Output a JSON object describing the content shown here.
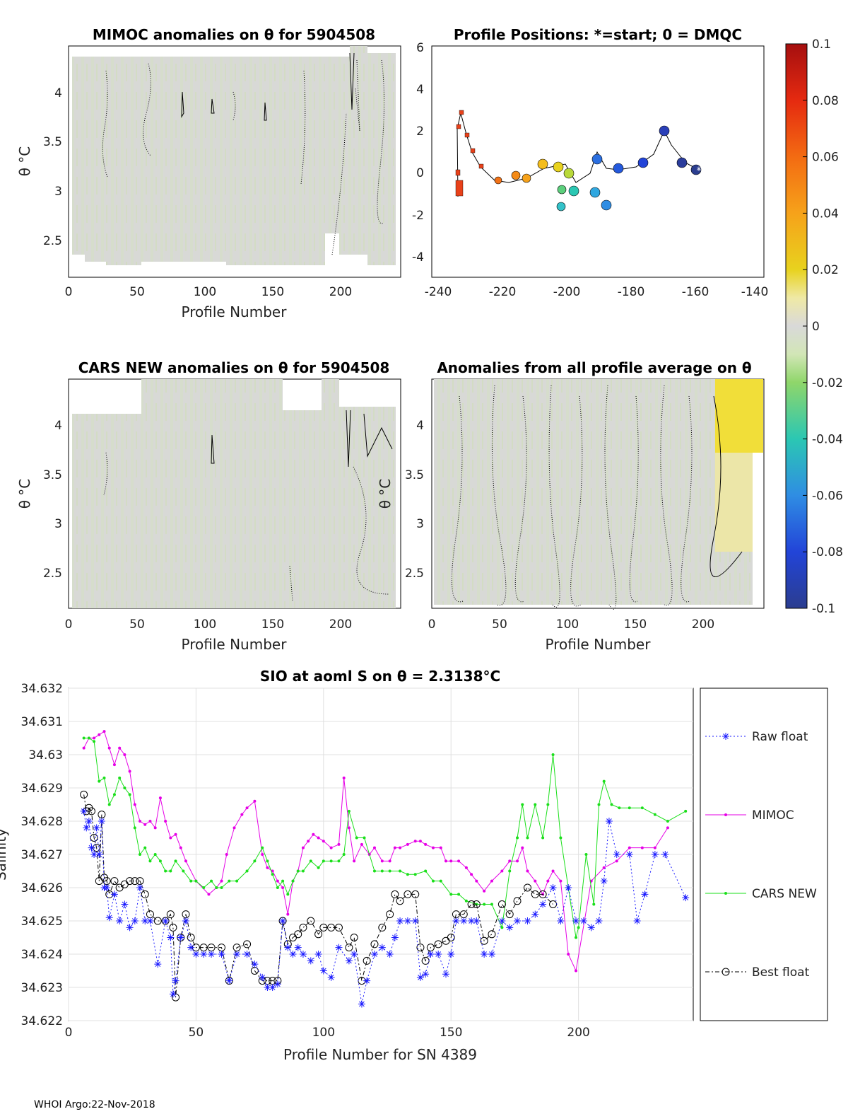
{
  "footer": "WHOI Argo:22-Nov-2018",
  "panels": {
    "mimoc": {
      "title": "MIMOC anomalies on θ  for 5904508",
      "xlabel": "Profile Number",
      "ylabel": "θ °C",
      "xticks": [
        "0",
        "50",
        "100",
        "150",
        "200"
      ],
      "yticks": [
        "2.5",
        "3",
        "3.5",
        "4"
      ]
    },
    "positions": {
      "title": "Profile Positions: *=start; 0 = DMQC",
      "xticks": [
        "-240",
        "-220",
        "-200",
        "-180",
        "-160",
        "-140"
      ],
      "yticks": [
        "-4",
        "-2",
        "0",
        "2",
        "4",
        "6"
      ]
    },
    "cars": {
      "title": "CARS NEW anomalies on θ for 5904508",
      "xlabel": "Profile Number",
      "ylabel": "θ °C",
      "xticks": [
        "0",
        "50",
        "100",
        "150",
        "200"
      ],
      "yticks": [
        "2.5",
        "3",
        "3.5",
        "4"
      ]
    },
    "allavg": {
      "title": "Anomalies from all profile average on θ",
      "xlabel": "Profile Number",
      "ylabel": "θ °C",
      "xticks": [
        "0",
        "50",
        "100",
        "150",
        "200"
      ],
      "yticks": [
        "2.5",
        "3",
        "3.5",
        "4"
      ]
    },
    "colorbar": {
      "ticks": [
        "0.1",
        "0.08",
        "0.06",
        "0.04",
        "0.02",
        "0",
        "-0.02",
        "-0.04",
        "-0.06",
        "-0.08",
        "-0.1"
      ]
    }
  },
  "chart_data": {
    "type": "line",
    "title": "SIO at aoml S on θ = 2.3138°C",
    "xlabel": "Profile Number for SN 4389",
    "ylabel": "Salinity",
    "xlim": [
      0,
      245
    ],
    "ylim": [
      34.622,
      34.632
    ],
    "xticks": [
      "0",
      "50",
      "100",
      "150",
      "200"
    ],
    "yticks": [
      "34.622",
      "34.623",
      "34.624",
      "34.625",
      "34.626",
      "34.627",
      "34.628",
      "34.629",
      "34.63",
      "34.631",
      "34.632"
    ],
    "grid": true,
    "legend_position": "right",
    "series": [
      {
        "name": "Raw float",
        "color": "#1a1aff",
        "x": [
          6,
          7,
          8,
          9,
          10,
          11,
          12,
          13,
          14,
          15,
          16,
          18,
          20,
          22,
          24,
          26,
          28,
          30,
          32,
          35,
          38,
          40,
          41,
          42,
          44,
          46,
          48,
          50,
          53,
          56,
          60,
          63,
          66,
          70,
          73,
          76,
          78,
          80,
          82,
          84,
          86,
          88,
          90,
          92,
          95,
          98,
          100,
          103,
          106,
          110,
          112,
          115,
          117,
          120,
          123,
          126,
          128,
          130,
          133,
          136,
          138,
          140,
          142,
          145,
          148,
          150,
          152,
          155,
          158,
          160,
          163,
          166,
          170,
          173,
          176,
          180,
          183,
          186,
          190,
          193,
          196,
          199,
          202,
          205,
          208,
          210,
          212,
          215,
          220,
          223,
          226,
          230,
          234,
          242
        ],
        "y": [
          34.6283,
          34.6278,
          34.628,
          34.6272,
          34.627,
          34.6278,
          34.627,
          34.628,
          34.626,
          34.626,
          34.6251,
          34.6258,
          34.625,
          34.6255,
          34.6248,
          34.625,
          34.626,
          34.625,
          34.625,
          34.6237,
          34.625,
          34.6245,
          34.6228,
          34.6232,
          34.6245,
          34.625,
          34.6242,
          34.624,
          34.624,
          34.624,
          34.624,
          34.6232,
          34.624,
          34.624,
          34.6237,
          34.6233,
          34.623,
          34.623,
          34.6231,
          34.625,
          34.6242,
          34.624,
          34.6242,
          34.624,
          34.6238,
          34.624,
          34.6235,
          34.6233,
          34.6242,
          34.6238,
          34.624,
          34.6225,
          34.6232,
          34.624,
          34.6242,
          34.624,
          34.6245,
          34.625,
          34.625,
          34.625,
          34.6233,
          34.6234,
          34.624,
          34.624,
          34.6234,
          34.624,
          34.625,
          34.625,
          34.625,
          34.625,
          34.624,
          34.624,
          34.625,
          34.6248,
          34.625,
          34.625,
          34.6252,
          34.6255,
          34.626,
          34.625,
          34.626,
          34.625,
          34.625,
          34.6248,
          34.625,
          34.6262,
          34.628,
          34.627,
          34.627,
          34.625,
          34.6258,
          34.627,
          34.627,
          34.6257
        ]
      },
      {
        "name": "MIMOC",
        "color": "#e600e6",
        "x": [
          6,
          8,
          10,
          12,
          14,
          16,
          18,
          20,
          22,
          24,
          26,
          28,
          30,
          32,
          34,
          36,
          38,
          40,
          42,
          44,
          46,
          50,
          55,
          58,
          60,
          62,
          65,
          68,
          70,
          73,
          76,
          78,
          80,
          82,
          84,
          86,
          88,
          90,
          92,
          94,
          96,
          98,
          100,
          103,
          106,
          108,
          110,
          112,
          115,
          118,
          120,
          123,
          126,
          128,
          130,
          133,
          136,
          138,
          140,
          143,
          146,
          148,
          150,
          153,
          156,
          158,
          160,
          163,
          166,
          170,
          173,
          176,
          178,
          180,
          183,
          186,
          188,
          190,
          193,
          196,
          199,
          205,
          210,
          215,
          220,
          225,
          230,
          235
        ],
        "y": [
          34.6302,
          34.6305,
          34.6305,
          34.6306,
          34.6307,
          34.6302,
          34.6297,
          34.6302,
          34.63,
          34.6295,
          34.6285,
          34.628,
          34.6279,
          34.628,
          34.6278,
          34.6287,
          34.628,
          34.6275,
          34.6276,
          34.6272,
          34.6268,
          34.6262,
          34.6258,
          34.626,
          34.6262,
          34.627,
          34.6278,
          34.6282,
          34.6284,
          34.6286,
          34.627,
          34.6266,
          34.6265,
          34.6262,
          34.626,
          34.6252,
          34.6262,
          34.6265,
          34.6272,
          34.6274,
          34.6276,
          34.6275,
          34.6274,
          34.6272,
          34.6273,
          34.6293,
          34.6278,
          34.6268,
          34.6273,
          34.627,
          34.6272,
          34.6268,
          34.6268,
          34.6272,
          34.6272,
          34.6273,
          34.6274,
          34.6274,
          34.6273,
          34.6272,
          34.6272,
          34.6268,
          34.6268,
          34.6268,
          34.6266,
          34.6264,
          34.6262,
          34.6259,
          34.6262,
          34.6265,
          34.6268,
          34.6268,
          34.6272,
          34.6265,
          34.6262,
          34.6258,
          34.6262,
          34.6265,
          34.6262,
          34.624,
          34.6235,
          34.6262,
          34.6266,
          34.6268,
          34.6272,
          34.6272,
          34.6272,
          34.6278
        ]
      },
      {
        "name": "CARS NEW",
        "color": "#1adf1a",
        "x": [
          6,
          8,
          10,
          12,
          14,
          16,
          18,
          20,
          22,
          24,
          26,
          28,
          30,
          32,
          34,
          36,
          38,
          40,
          42,
          45,
          48,
          50,
          53,
          56,
          58,
          60,
          63,
          66,
          70,
          73,
          76,
          78,
          80,
          82,
          84,
          86,
          88,
          90,
          92,
          95,
          98,
          100,
          103,
          106,
          108,
          110,
          113,
          116,
          120,
          123,
          126,
          130,
          133,
          136,
          140,
          143,
          146,
          150,
          153,
          156,
          160,
          163,
          166,
          170,
          173,
          176,
          178,
          180,
          183,
          186,
          188,
          190,
          193,
          196,
          199,
          200,
          203,
          206,
          208,
          210,
          213,
          216,
          220,
          225,
          230,
          235,
          242
        ],
        "y": [
          34.6305,
          34.6305,
          34.6304,
          34.6292,
          34.6293,
          34.6285,
          34.6288,
          34.6293,
          34.629,
          34.6288,
          34.6278,
          34.627,
          34.6272,
          34.6268,
          34.627,
          34.6268,
          34.6265,
          34.6265,
          34.6268,
          34.6265,
          34.6262,
          34.6262,
          34.626,
          34.6262,
          34.626,
          34.626,
          34.6262,
          34.6262,
          34.6265,
          34.6268,
          34.6272,
          34.6268,
          34.6264,
          34.626,
          34.6262,
          34.6258,
          34.6262,
          34.6265,
          34.6265,
          34.6268,
          34.6266,
          34.6268,
          34.6268,
          34.6268,
          34.627,
          34.6283,
          34.6275,
          34.6275,
          34.6265,
          34.6265,
          34.6265,
          34.6265,
          34.6264,
          34.6264,
          34.6265,
          34.6262,
          34.6262,
          34.6258,
          34.6258,
          34.6256,
          34.6255,
          34.6255,
          34.6255,
          34.6248,
          34.6265,
          34.6275,
          34.6285,
          34.6275,
          34.6285,
          34.6275,
          34.6285,
          34.63,
          34.6275,
          34.626,
          34.6245,
          34.6248,
          34.627,
          34.6255,
          34.6285,
          34.6292,
          34.6285,
          34.6284,
          34.6284,
          34.6284,
          34.6282,
          34.628,
          34.6283
        ]
      },
      {
        "name": "Best float",
        "color": "#000000",
        "x": [
          6,
          7,
          8,
          9,
          10,
          11,
          12,
          13,
          14,
          15,
          16,
          18,
          20,
          22,
          24,
          26,
          28,
          30,
          32,
          35,
          38,
          40,
          41,
          42,
          44,
          46,
          48,
          50,
          53,
          56,
          60,
          63,
          66,
          70,
          73,
          76,
          78,
          80,
          82,
          84,
          86,
          88,
          90,
          92,
          95,
          98,
          100,
          103,
          106,
          110,
          112,
          115,
          117,
          120,
          123,
          126,
          128,
          130,
          133,
          136,
          138,
          140,
          142,
          145,
          148,
          150,
          152,
          155,
          158,
          160,
          163,
          166,
          170,
          173,
          176,
          180,
          183,
          186,
          190
        ],
        "y": [
          34.6288,
          34.6283,
          34.6284,
          34.6283,
          34.6275,
          34.6272,
          34.6262,
          34.6282,
          34.6263,
          34.6262,
          34.6258,
          34.6262,
          34.626,
          34.6261,
          34.6262,
          34.6262,
          34.6262,
          34.6258,
          34.6252,
          34.625,
          34.625,
          34.6252,
          34.6248,
          34.6227,
          34.6245,
          34.6252,
          34.6245,
          34.6242,
          34.6242,
          34.6242,
          34.6242,
          34.6232,
          34.6242,
          34.6243,
          34.6235,
          34.6232,
          34.6232,
          34.6232,
          34.6232,
          34.625,
          34.6243,
          34.6245,
          34.6246,
          34.6248,
          34.625,
          34.6246,
          34.6248,
          34.6248,
          34.6248,
          34.6242,
          34.6245,
          34.6232,
          34.6238,
          34.6243,
          34.6248,
          34.6252,
          34.6258,
          34.6256,
          34.6258,
          34.6258,
          34.6242,
          34.6238,
          34.6242,
          34.6243,
          34.6244,
          34.6245,
          34.6252,
          34.6252,
          34.6255,
          34.6255,
          34.6244,
          34.6246,
          34.6255,
          34.6252,
          34.6256,
          34.626,
          34.6258,
          34.6258,
          34.6255
        ]
      }
    ]
  }
}
